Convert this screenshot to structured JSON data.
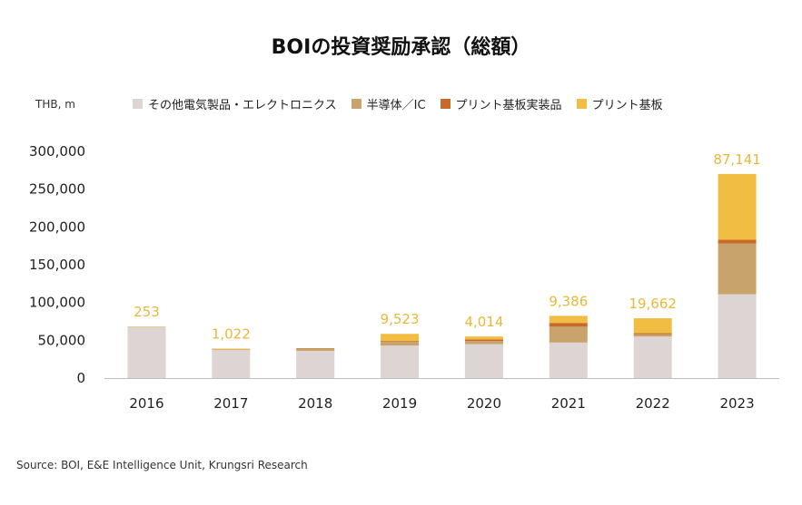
{
  "title": "BOIの投資奨励承認（総額）",
  "unit": "THB, m",
  "source": "Source: BOI, E&E  Intelligence Unit, Krungsri Research",
  "legend": [
    {
      "label": "その他電気製品・エレクトロニクス",
      "color": "#ddd5d3"
    },
    {
      "label": "半導体／IC",
      "color": "#c8a36c"
    },
    {
      "label": "プリント基板実装品",
      "color": "#c96a2b"
    },
    {
      "label": "プリント基板",
      "color": "#f2bd43"
    }
  ],
  "chart_data": {
    "type": "bar",
    "stacked": true,
    "categories": [
      "2016",
      "2017",
      "2018",
      "2019",
      "2020",
      "2021",
      "2022",
      "2023"
    ],
    "series": [
      {
        "name": "その他電気製品・エレクトロニクス",
        "color": "#ddd5d3",
        "values": [
          68000,
          37000,
          36000,
          43000,
          45000,
          47000,
          55000,
          111000
        ]
      },
      {
        "name": "半導体／IC",
        "color": "#c8a36c",
        "values": [
          0,
          1000,
          3000,
          5000,
          4000,
          21000,
          3000,
          67000
        ]
      },
      {
        "name": "プリント基板実装品",
        "color": "#c96a2b",
        "values": [
          0,
          0,
          500,
          1000,
          2000,
          5000,
          1500,
          5000
        ]
      },
      {
        "name": "プリント基板",
        "color": "#f2bd43",
        "values": [
          253,
          1022,
          0,
          9523,
          4014,
          9386,
          19662,
          87141
        ]
      }
    ],
    "data_labels": [
      "253",
      "1,022",
      "",
      "9,523",
      "4,014",
      "9,386",
      "19,662",
      "87,141"
    ],
    "yticks": [
      "0",
      "50,000",
      "100,000",
      "150,000",
      "200,000",
      "250,000",
      "300,000"
    ],
    "ylim": [
      0,
      300000
    ],
    "grid": false,
    "legend_position": "top"
  }
}
